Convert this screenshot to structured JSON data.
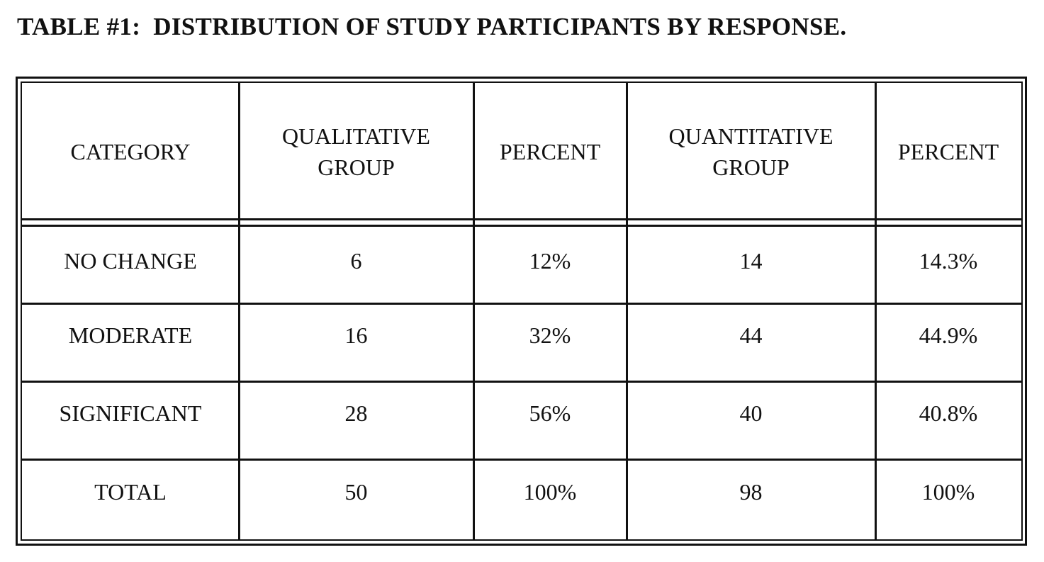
{
  "title": "TABLE #1:  DISTRIBUTION OF STUDY PARTICIPANTS BY RESPONSE.",
  "table": {
    "header": [
      [
        "CATEGORY"
      ],
      [
        "QUALITATIVE",
        "GROUP"
      ],
      [
        "PERCENT"
      ],
      [
        "QUANTITATIVE",
        "GROUP"
      ],
      [
        "PERCENT"
      ]
    ],
    "rows": [
      [
        "NO CHANGE",
        "6",
        "12%",
        "14",
        "14.3%"
      ],
      [
        "MODERATE",
        "16",
        "32%",
        "44",
        "44.9%"
      ],
      [
        "SIGNIFICANT",
        "28",
        "56%",
        "40",
        "40.8%"
      ],
      [
        "TOTAL",
        "50",
        "100%",
        "98",
        "100%"
      ]
    ]
  }
}
